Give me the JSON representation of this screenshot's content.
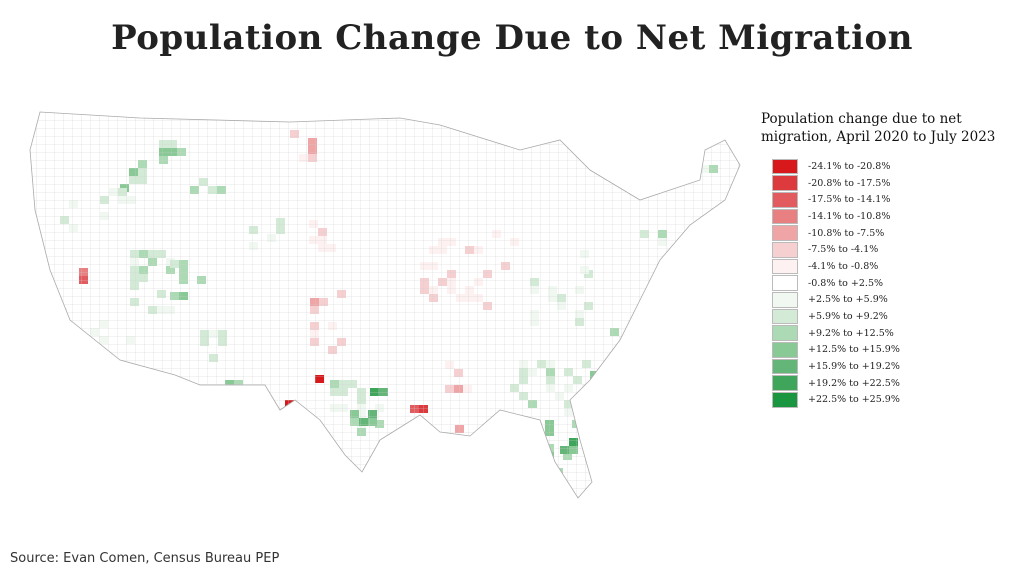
{
  "title": "Population Change Due to Net Migration",
  "legend": {
    "title_line1": "Population change due to net",
    "title_line2": "migration, April 2020 to July 2023",
    "bins": [
      {
        "label": "-24.1% to -20.8%",
        "color": "#d7191c"
      },
      {
        "label": "-20.8% to -17.5%",
        "color": "#dc3a3d"
      },
      {
        "label": "-17.5% to -14.1%",
        "color": "#e25b5e"
      },
      {
        "label": "-14.1% to -10.8%",
        "color": "#e87f81"
      },
      {
        "label": "-10.8% to -7.5%",
        "color": "#efa4a6"
      },
      {
        "label": "-7.5% to -4.1%",
        "color": "#f6cfd0"
      },
      {
        "label": "-4.1% to -0.8%",
        "color": "#fdf1f1"
      },
      {
        "label": "-0.8% to +2.5%",
        "color": "#ffffff"
      },
      {
        "label": "+2.5% to +5.9%",
        "color": "#f1f8f2"
      },
      {
        "label": "+5.9% to +9.2%",
        "color": "#d3ebd6"
      },
      {
        "label": "+9.2% to +12.5%",
        "color": "#acdab4"
      },
      {
        "label": "+12.5% to +15.9%",
        "color": "#88c996"
      },
      {
        "label": "+15.9% to +19.2%",
        "color": "#63b677"
      },
      {
        "label": "+19.2% to +22.5%",
        "color": "#3ea55a"
      },
      {
        "label": "+22.5% to +25.9%",
        "color": "#1a9641"
      }
    ]
  },
  "source": "Source: Evan Comen, Census Bureau PEP"
}
